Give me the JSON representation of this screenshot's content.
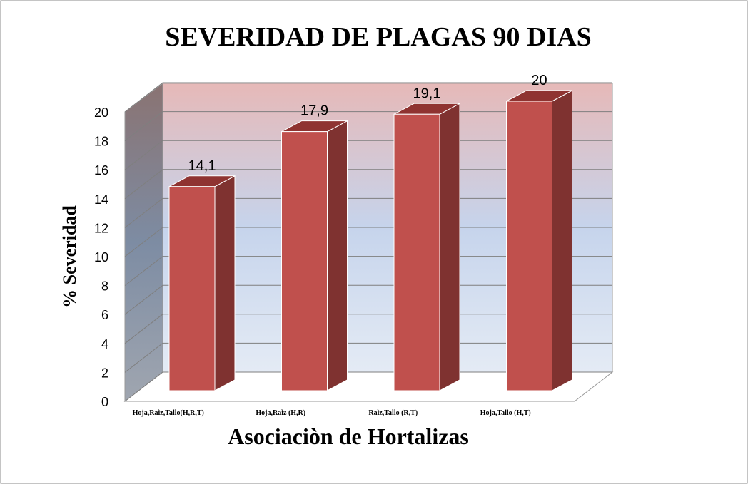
{
  "chart_data": {
    "type": "bar3d",
    "title": "SEVERIDAD DE PLAGAS 90 DIAS",
    "x_label": "Asociaciòn de Hortalizas",
    "y_label": "% Severidad",
    "categories": [
      "Hoja,Raìz,Tallo(H,R,T)",
      "Hoja,Raìz (H,R)",
      "Raìz,Tallo (R,T)",
      "Hoja,Tallo (H,T)"
    ],
    "values": [
      14.1,
      17.9,
      19.1,
      20
    ],
    "value_labels": [
      "14,1",
      "17,9",
      "19,1",
      "20"
    ],
    "color": "#c0504d",
    "ylim": [
      0,
      20
    ],
    "yticks": [
      0,
      2,
      4,
      6,
      8,
      10,
      12,
      14,
      16,
      18,
      20
    ],
    "grid": true
  }
}
